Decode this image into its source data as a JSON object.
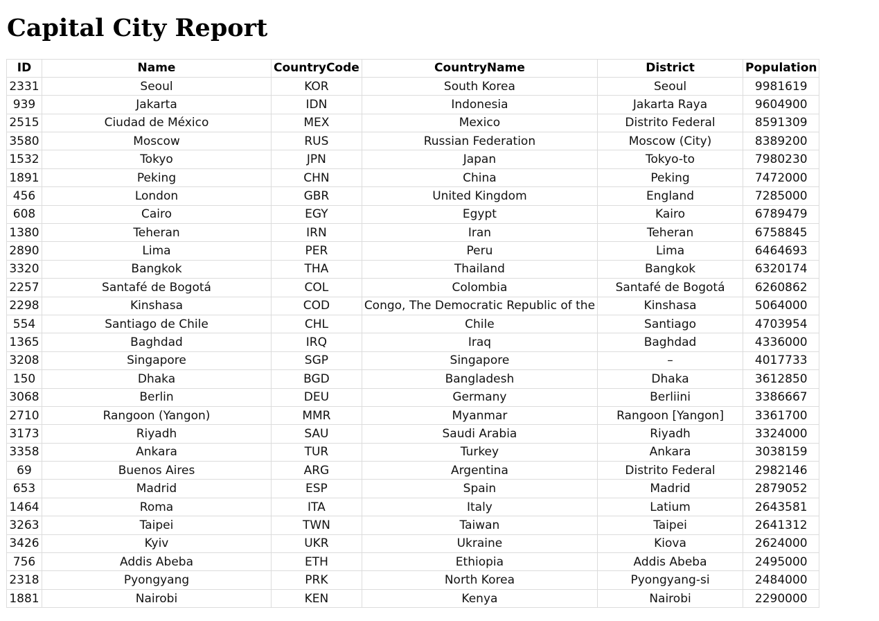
{
  "page": {
    "title": "Capital City Report"
  },
  "table": {
    "headers": [
      "ID",
      "Name",
      "CountryCode",
      "CountryName",
      "District",
      "Population"
    ],
    "rows": [
      [
        "2331",
        "Seoul",
        "KOR",
        "South Korea",
        "Seoul",
        "9981619"
      ],
      [
        "939",
        "Jakarta",
        "IDN",
        "Indonesia",
        "Jakarta Raya",
        "9604900"
      ],
      [
        "2515",
        "Ciudad de México",
        "MEX",
        "Mexico",
        "Distrito Federal",
        "8591309"
      ],
      [
        "3580",
        "Moscow",
        "RUS",
        "Russian Federation",
        "Moscow (City)",
        "8389200"
      ],
      [
        "1532",
        "Tokyo",
        "JPN",
        "Japan",
        "Tokyo-to",
        "7980230"
      ],
      [
        "1891",
        "Peking",
        "CHN",
        "China",
        "Peking",
        "7472000"
      ],
      [
        "456",
        "London",
        "GBR",
        "United Kingdom",
        "England",
        "7285000"
      ],
      [
        "608",
        "Cairo",
        "EGY",
        "Egypt",
        "Kairo",
        "6789479"
      ],
      [
        "1380",
        "Teheran",
        "IRN",
        "Iran",
        "Teheran",
        "6758845"
      ],
      [
        "2890",
        "Lima",
        "PER",
        "Peru",
        "Lima",
        "6464693"
      ],
      [
        "3320",
        "Bangkok",
        "THA",
        "Thailand",
        "Bangkok",
        "6320174"
      ],
      [
        "2257",
        "Santafé de Bogotá",
        "COL",
        "Colombia",
        "Santafé de Bogotá",
        "6260862"
      ],
      [
        "2298",
        "Kinshasa",
        "COD",
        "Congo, The Democratic Republic of the",
        "Kinshasa",
        "5064000"
      ],
      [
        "554",
        "Santiago de Chile",
        "CHL",
        "Chile",
        "Santiago",
        "4703954"
      ],
      [
        "1365",
        "Baghdad",
        "IRQ",
        "Iraq",
        "Baghdad",
        "4336000"
      ],
      [
        "3208",
        "Singapore",
        "SGP",
        "Singapore",
        "–",
        "4017733"
      ],
      [
        "150",
        "Dhaka",
        "BGD",
        "Bangladesh",
        "Dhaka",
        "3612850"
      ],
      [
        "3068",
        "Berlin",
        "DEU",
        "Germany",
        "Berliini",
        "3386667"
      ],
      [
        "2710",
        "Rangoon (Yangon)",
        "MMR",
        "Myanmar",
        "Rangoon [Yangon]",
        "3361700"
      ],
      [
        "3173",
        "Riyadh",
        "SAU",
        "Saudi Arabia",
        "Riyadh",
        "3324000"
      ],
      [
        "3358",
        "Ankara",
        "TUR",
        "Turkey",
        "Ankara",
        "3038159"
      ],
      [
        "69",
        "Buenos Aires",
        "ARG",
        "Argentina",
        "Distrito Federal",
        "2982146"
      ],
      [
        "653",
        "Madrid",
        "ESP",
        "Spain",
        "Madrid",
        "2879052"
      ],
      [
        "1464",
        "Roma",
        "ITA",
        "Italy",
        "Latium",
        "2643581"
      ],
      [
        "3263",
        "Taipei",
        "TWN",
        "Taiwan",
        "Taipei",
        "2641312"
      ],
      [
        "3426",
        "Kyiv",
        "UKR",
        "Ukraine",
        "Kiova",
        "2624000"
      ],
      [
        "756",
        "Addis Abeba",
        "ETH",
        "Ethiopia",
        "Addis Abeba",
        "2495000"
      ],
      [
        "2318",
        "Pyongyang",
        "PRK",
        "North Korea",
        "Pyongyang-si",
        "2484000"
      ],
      [
        "1881",
        "Nairobi",
        "KEN",
        "Kenya",
        "Nairobi",
        "2290000"
      ]
    ]
  }
}
